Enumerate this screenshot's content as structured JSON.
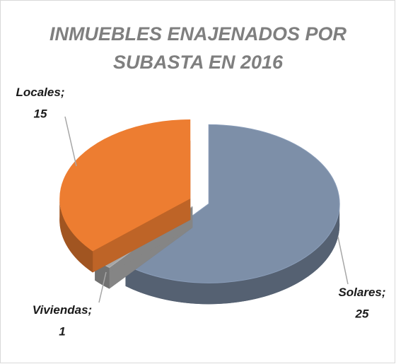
{
  "chart_data": {
    "type": "pie",
    "title": "INMUEBLES ENAJENADOS POR SUBASTA EN 2016",
    "categories": [
      "Solares",
      "Viviendas",
      "Locales"
    ],
    "values": [
      25,
      1,
      15
    ],
    "colors": [
      "#7d8fa8",
      "#a6a6a6",
      "#ed7d31"
    ],
    "separator": ";"
  }
}
